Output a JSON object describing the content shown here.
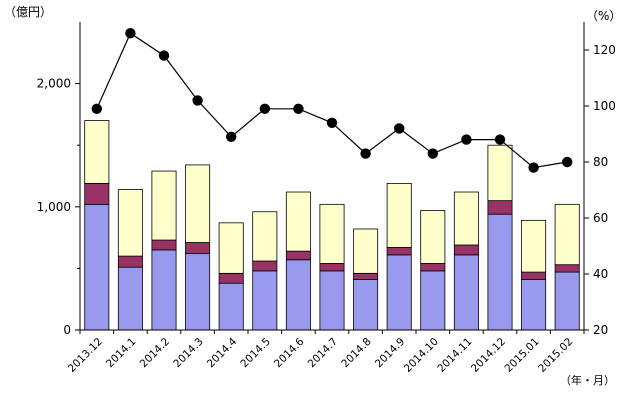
{
  "chart_data": {
    "type": "bar",
    "stacked": true,
    "categories": [
      "2013.12",
      "2014.1",
      "2014.2",
      "2014.3",
      "2014.4",
      "2014.5",
      "2014.6",
      "2014.7",
      "2014.8",
      "2014.9",
      "2014.10",
      "2014.11",
      "2014.12",
      "2015.01",
      "2015.02"
    ],
    "series": [
      {
        "values": [
          1020,
          510,
          650,
          620,
          380,
          480,
          570,
          480,
          410,
          610,
          480,
          610,
          940,
          410,
          470
        ],
        "color": "#9999ee"
      },
      {
        "values": [
          170,
          90,
          80,
          90,
          80,
          80,
          70,
          60,
          50,
          60,
          60,
          80,
          110,
          60,
          60
        ],
        "color": "#993366"
      },
      {
        "values": [
          510,
          540,
          560,
          630,
          410,
          400,
          480,
          480,
          360,
          520,
          430,
          430,
          450,
          420,
          490
        ],
        "color": "#ffffcc"
      }
    ],
    "line_series": {
      "values": [
        99,
        126,
        118,
        102,
        89,
        99,
        99,
        94,
        83,
        92,
        83,
        88,
        88,
        78,
        80
      ],
      "axis": "right",
      "color": "#000000"
    },
    "left_axis": {
      "unit_label": "（億円）",
      "ylim": [
        0,
        2500
      ],
      "ticks": [
        0,
        1000,
        2000
      ],
      "tick_labels": [
        "0",
        "1,000",
        "2,000"
      ]
    },
    "right_axis": {
      "unit_label": "（%）",
      "ylim": [
        20,
        130
      ],
      "ticks": [
        20,
        40,
        60,
        80,
        100,
        120
      ],
      "tick_labels": [
        "20",
        "40",
        "60",
        "80",
        "100",
        "120"
      ]
    },
    "x_axis_label": "（年・月）",
    "grid": false,
    "legend": "none"
  }
}
